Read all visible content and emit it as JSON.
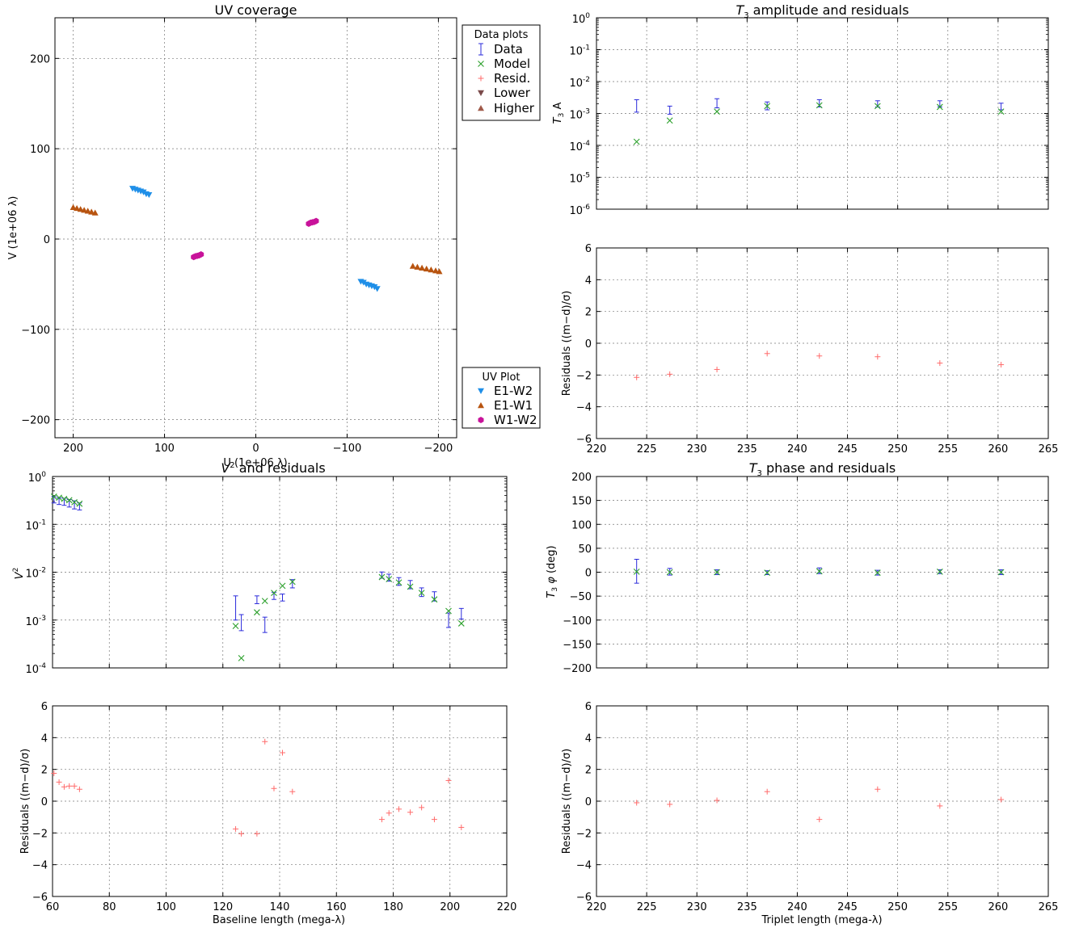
{
  "colors": {
    "data": "#2b2bdb",
    "model": "#2ca02c",
    "resid": "#ff6b6b",
    "e1w2": "#1f8fe8",
    "e1w1": "#b85410",
    "w1w2": "#c8139a",
    "lower": "#7a4a4a",
    "higher": "#a05a4a"
  },
  "legend_data": {
    "title": "Data plots",
    "items": [
      "Data",
      "Model",
      "Resid.",
      "Lower",
      "Higher"
    ]
  },
  "legend_uv": {
    "title": "UV Plot",
    "items": [
      "E1-W2",
      "E1-W1",
      "W1-W2"
    ]
  },
  "chart_data": [
    {
      "id": "uv",
      "type": "scatter",
      "title": "UV coverage",
      "xlabel": "U (1e+06 λ)",
      "ylabel": "V (1e+06 λ)",
      "xlim": [
        220,
        -220
      ],
      "ylim": [
        -220,
        245
      ],
      "xticks": [
        200,
        100,
        0,
        -100,
        -200
      ],
      "xtick_labels": [
        "200",
        "100",
        "0",
        "−100",
        "−200"
      ],
      "yticks": [
        -200,
        -100,
        0,
        100,
        200
      ],
      "ytick_labels": [
        "−200",
        "−100",
        "0",
        "100",
        "200"
      ],
      "grid": true,
      "series": [
        {
          "name": "E1-W2",
          "marker": "tri_down",
          "color": "#1f8fe8",
          "points": [
            [
              135,
              56
            ],
            [
              132,
              55
            ],
            [
              129,
              54
            ],
            [
              126,
              53
            ],
            [
              123,
              52
            ],
            [
              120,
              50
            ],
            [
              117,
              49
            ],
            [
              -115,
              -47
            ],
            [
              -118,
              -48
            ],
            [
              -121,
              -50
            ],
            [
              -124,
              -51
            ],
            [
              -127,
              -52
            ],
            [
              -130,
              -53
            ],
            [
              -133,
              -55
            ]
          ]
        },
        {
          "name": "E1-W1",
          "marker": "tri_up",
          "color": "#b85410",
          "points": [
            [
              200,
              35
            ],
            [
              196,
              34
            ],
            [
              192,
              33
            ],
            [
              188,
              32
            ],
            [
              184,
              31
            ],
            [
              180,
              30
            ],
            [
              176,
              29
            ],
            [
              -172,
              -30
            ],
            [
              -177,
              -31
            ],
            [
              -182,
              -32
            ],
            [
              -187,
              -33
            ],
            [
              -192,
              -34
            ],
            [
              -197,
              -35
            ],
            [
              -201,
              -36
            ]
          ]
        },
        {
          "name": "W1-W2",
          "marker": "hexagon",
          "color": "#c8139a",
          "points": [
            [
              68,
              -20
            ],
            [
              66,
              -19
            ],
            [
              64,
              -18.5
            ],
            [
              62,
              -18
            ],
            [
              60,
              -17
            ],
            [
              -58,
              17
            ],
            [
              -60,
              18
            ],
            [
              -62,
              18.5
            ],
            [
              -64,
              19
            ],
            [
              -66,
              20
            ]
          ]
        }
      ]
    },
    {
      "id": "t3amp",
      "type": "scatter",
      "title": "T3 amplitude and residuals",
      "ylabel": "T3 A",
      "xlim": [
        220,
        265
      ],
      "ylim_log10": [
        -6,
        0
      ],
      "yscale": "log",
      "xticks": [
        220,
        225,
        230,
        235,
        240,
        245,
        250,
        255,
        260,
        265
      ],
      "yticks_exp": [
        -6,
        -5,
        -4,
        -3,
        -2,
        -1,
        0
      ],
      "grid": true,
      "x": [
        224,
        227.3,
        232,
        237,
        242.2,
        248,
        254.2,
        260.3
      ],
      "data": [
        0.0018,
        0.0013,
        0.0021,
        0.0017,
        0.0021,
        0.002,
        0.002,
        0.0017
      ],
      "data_err_lo": [
        0.0011,
        0.00095,
        0.0015,
        0.0013,
        0.0016,
        0.0016,
        0.0016,
        0.0013
      ],
      "data_err_hi": [
        0.0027,
        0.0017,
        0.0029,
        0.0023,
        0.0027,
        0.0025,
        0.0025,
        0.0021
      ],
      "model": [
        0.00013,
        0.0006,
        0.00115,
        0.0017,
        0.0018,
        0.0017,
        0.0016,
        0.00115
      ]
    },
    {
      "id": "t3amp_res",
      "type": "scatter",
      "ylabel": "Residuals ((m−d)/σ)",
      "xlim": [
        220,
        265
      ],
      "ylim": [
        -6,
        6
      ],
      "xticks": [
        220,
        225,
        230,
        235,
        240,
        245,
        250,
        255,
        260,
        265
      ],
      "yticks": [
        -6,
        -4,
        -2,
        0,
        2,
        4,
        6
      ],
      "ytick_labels": [
        "−6",
        "−4",
        "−2",
        "0",
        "2",
        "4",
        "6"
      ],
      "grid": true,
      "x": [
        224,
        227.3,
        232,
        237,
        242.2,
        248,
        254.2,
        260.3
      ],
      "resid": [
        -2.15,
        -1.95,
        -1.65,
        -0.65,
        -0.8,
        -0.85,
        -1.25,
        -1.35
      ]
    },
    {
      "id": "v2",
      "type": "scatter",
      "title": "V² and residuals",
      "ylabel": "V²",
      "xlim": [
        60,
        220
      ],
      "ylim_log10": [
        -4,
        0
      ],
      "yscale": "log",
      "yticks_exp": [
        -4,
        -3,
        -2,
        -1,
        0
      ],
      "grid": true,
      "x": [
        60.5,
        62.3,
        64.1,
        65.9,
        67.7,
        69.5,
        124.5,
        126.5,
        132,
        134.8,
        138,
        141,
        144.5,
        176,
        178.5,
        182,
        186,
        190,
        194.5,
        199.5,
        204
      ],
      "data": [
        0.33,
        0.31,
        0.3,
        0.28,
        0.26,
        0.24,
        0.0021,
        0.00095,
        0.0027,
        0.00085,
        0.0032,
        0.003,
        0.0058,
        0.0088,
        0.0078,
        0.0065,
        0.0056,
        0.0039,
        0.0032,
        0.00105,
        0.0014
      ],
      "data_err_lo": [
        0.28,
        0.26,
        0.25,
        0.23,
        0.21,
        0.2,
        0.001,
        0.0006,
        0.0022,
        0.00055,
        0.0027,
        0.0025,
        0.0047,
        0.0075,
        0.0065,
        0.0053,
        0.0045,
        0.0031,
        0.0025,
        0.0007,
        0.00105
      ],
      "data_err_hi": [
        0.38,
        0.36,
        0.35,
        0.33,
        0.31,
        0.28,
        0.0032,
        0.0013,
        0.0032,
        0.00115,
        0.0038,
        0.0035,
        0.007,
        0.0101,
        0.0091,
        0.0077,
        0.0067,
        0.0047,
        0.0039,
        0.0014,
        0.00175
      ],
      "model": [
        0.38,
        0.36,
        0.34,
        0.32,
        0.29,
        0.27,
        0.00075,
        0.00016,
        0.00145,
        0.0025,
        0.0037,
        0.0052,
        0.0063,
        0.0079,
        0.0072,
        0.0061,
        0.005,
        0.0037,
        0.0027,
        0.00155,
        0.00085
      ]
    },
    {
      "id": "v2_res",
      "type": "scatter",
      "ylabel": "Residuals ((m−d)/σ)",
      "xlabel": "Baseline length (mega-λ)",
      "xlim": [
        60,
        220
      ],
      "ylim": [
        -6,
        6
      ],
      "xticks": [
        60,
        80,
        100,
        120,
        140,
        160,
        180,
        200,
        220
      ],
      "yticks": [
        -6,
        -4,
        -2,
        0,
        2,
        4,
        6
      ],
      "ytick_labels": [
        "−6",
        "−4",
        "−2",
        "0",
        "2",
        "4",
        "6"
      ],
      "grid": true,
      "x": [
        60.5,
        62.3,
        64.1,
        65.9,
        67.7,
        69.5,
        124.5,
        126.5,
        132,
        134.8,
        138,
        141,
        144.5,
        176,
        178.5,
        182,
        186,
        190,
        194.5,
        199.5,
        204
      ],
      "resid": [
        1.75,
        1.2,
        0.9,
        0.95,
        0.95,
        0.75,
        -1.75,
        -2.05,
        -2.05,
        3.75,
        0.8,
        3.05,
        0.6,
        -1.15,
        -0.75,
        -0.5,
        -0.7,
        -0.4,
        -1.15,
        1.3,
        -1.65
      ]
    },
    {
      "id": "t3phi",
      "type": "scatter",
      "title": "T3 phase and residuals",
      "ylabel": "T3 φ (deg)",
      "xlim": [
        220,
        265
      ],
      "ylim": [
        -200,
        200
      ],
      "yticks": [
        -200,
        -150,
        -100,
        -50,
        0,
        50,
        100,
        150,
        200
      ],
      "ytick_labels": [
        "−200",
        "−150",
        "−100",
        "−50",
        "0",
        "50",
        "100",
        "150",
        "200"
      ],
      "grid": true,
      "x": [
        224,
        227.3,
        232,
        237,
        242.2,
        248,
        254.2,
        260.3
      ],
      "data": [
        2,
        1,
        0,
        -1,
        3,
        -1,
        1,
        0
      ],
      "data_err": [
        25,
        7,
        5,
        4,
        6,
        5,
        4,
        5
      ],
      "model": [
        1,
        0,
        0,
        -1,
        2,
        -1,
        1,
        0
      ]
    },
    {
      "id": "t3phi_res",
      "type": "scatter",
      "ylabel": "Residuals ((m−d)/σ)",
      "xlabel": "Triplet length (mega-λ)",
      "xlim": [
        220,
        265
      ],
      "ylim": [
        -6,
        6
      ],
      "xticks": [
        220,
        225,
        230,
        235,
        240,
        245,
        250,
        255,
        260,
        265
      ],
      "yticks": [
        -6,
        -4,
        -2,
        0,
        2,
        4,
        6
      ],
      "ytick_labels": [
        "−6",
        "−4",
        "−2",
        "0",
        "2",
        "4",
        "6"
      ],
      "grid": true,
      "x": [
        224,
        227.3,
        232,
        237,
        242.2,
        248,
        254.2,
        260.3
      ],
      "resid": [
        -0.1,
        -0.2,
        0.05,
        0.6,
        -1.15,
        0.75,
        -0.3,
        0.1
      ]
    }
  ]
}
